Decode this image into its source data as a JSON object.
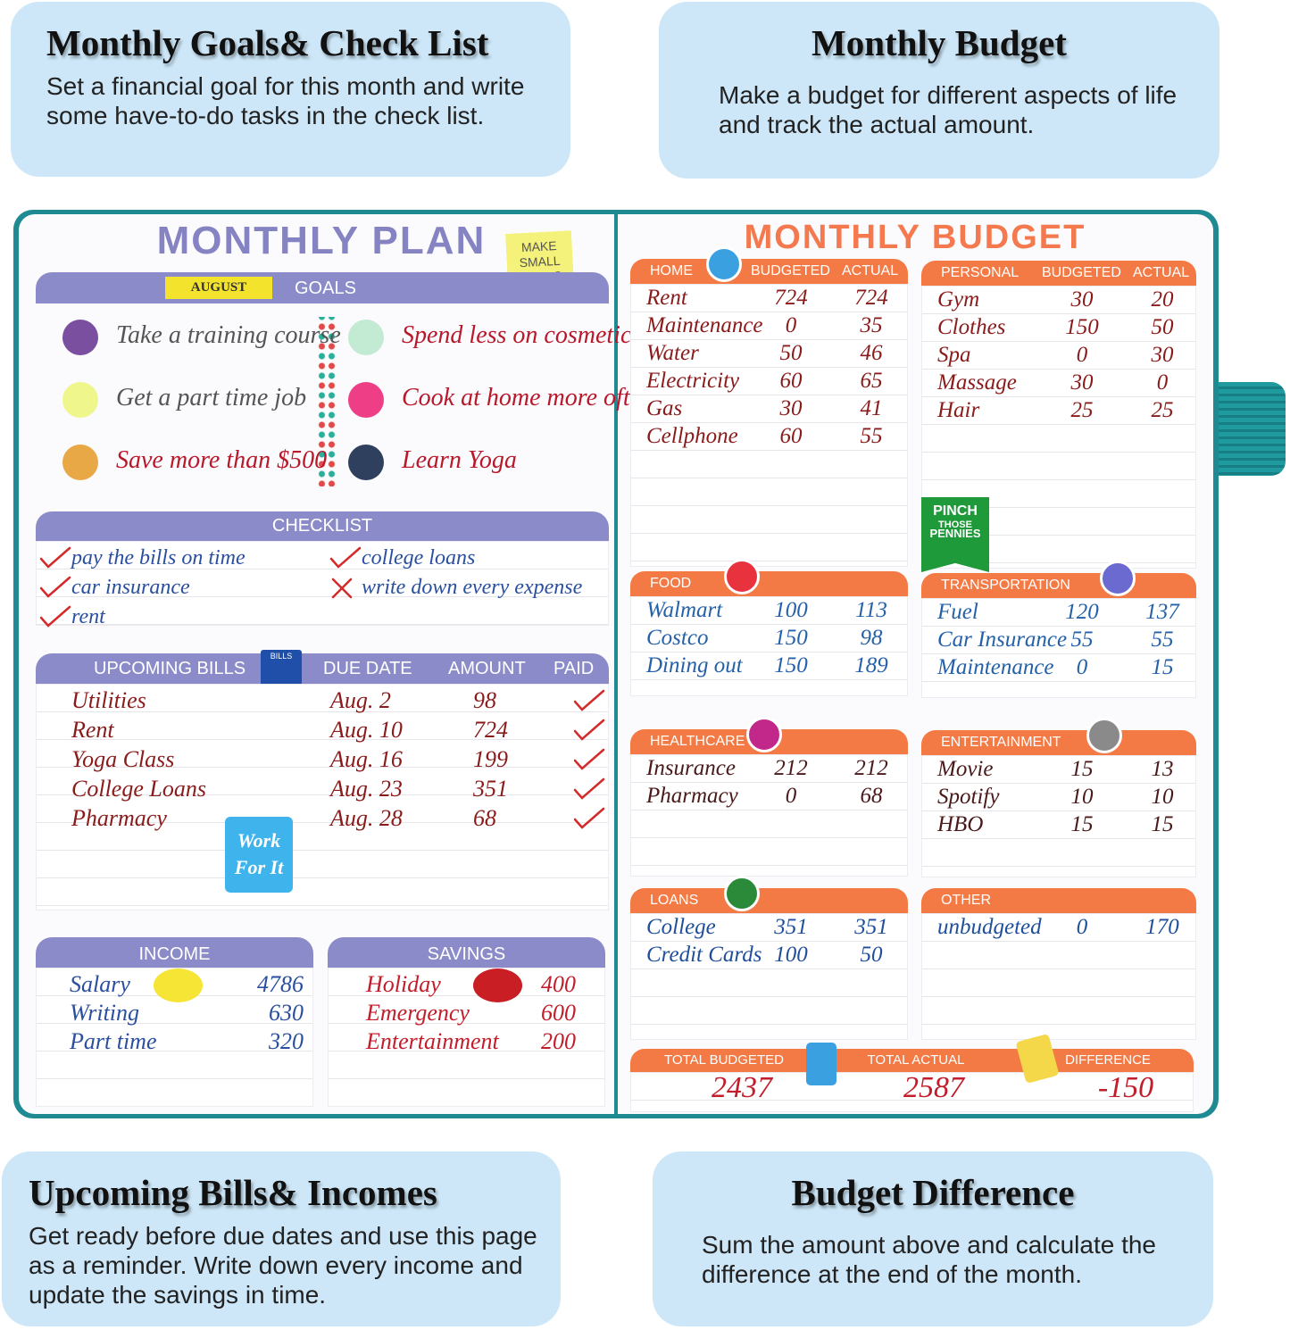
{
  "callouts": [
    {
      "title": "Monthly Goals& Check List",
      "text": "Set a financial goal for this month and write some have-to-do tasks in the check list."
    },
    {
      "title": "Monthly Budget",
      "text": "Make a budget for different aspects of life and track the actual amount."
    },
    {
      "title": "Upcoming Bills& Incomes",
      "text": "Get ready before due dates and use this page as a reminder. Write down every income and update the savings in time."
    },
    {
      "title": "Budget Difference",
      "text": "Sum the amount above and calculate the difference at the end of the month."
    }
  ],
  "plan": {
    "title": "MONTHLY PLAN",
    "sticky": [
      "MAKE",
      "SMALL",
      "GOALS"
    ],
    "month": "AUGUST",
    "goals_header": "GOALS",
    "goals": [
      {
        "text": "Take a training course",
        "color": "#7b4f9f"
      },
      {
        "text": "Get a part time job",
        "color": "#eef68c"
      },
      {
        "text": "Save more than $500",
        "color": "#e9a846"
      },
      {
        "text": "Spend less on cosmetics",
        "color": "#c3ead3"
      },
      {
        "text": "Cook at home more often",
        "color": "#ee3f86"
      },
      {
        "text": "Learn Yoga",
        "color": "#2f3f5e"
      }
    ],
    "checklist_header": "CHECKLIST",
    "checklist": [
      {
        "text": "pay the bills on time",
        "done": true
      },
      {
        "text": "car insurance",
        "done": true
      },
      {
        "text": "rent",
        "done": true
      },
      {
        "text": "college loans",
        "done": true
      },
      {
        "text": "write down every expense",
        "done": false
      }
    ],
    "bills": {
      "header": "UPCOMING BILLS",
      "icon": "BILLS",
      "columns": [
        "DUE DATE",
        "AMOUNT",
        "PAID"
      ],
      "rows": [
        [
          "Utilities",
          "Aug. 2",
          "98"
        ],
        [
          "Rent",
          "Aug. 10",
          "724"
        ],
        [
          "Yoga Class",
          "Aug. 16",
          "199"
        ],
        [
          "College Loans",
          "Aug. 23",
          "351"
        ],
        [
          "Pharmacy",
          "Aug. 28",
          "68"
        ]
      ],
      "paid": [
        true,
        true,
        true,
        true,
        true
      ]
    },
    "sticker": [
      "Work",
      "For It"
    ],
    "income": {
      "header": "INCOME",
      "rows": [
        [
          "Salary",
          "4786"
        ],
        [
          "Writing",
          "630"
        ],
        [
          "Part time",
          "320"
        ]
      ]
    },
    "savings": {
      "header": "SAVINGS",
      "rows": [
        [
          "Holiday",
          "400"
        ],
        [
          "Emergency",
          "600"
        ],
        [
          "Entertainment",
          "200"
        ]
      ]
    }
  },
  "budget": {
    "title": "MONTHLY BUDGET",
    "sections": [
      {
        "label": "HOME",
        "columns": [
          "BUDGETED",
          "ACTUAL"
        ],
        "rows": [
          [
            "Rent",
            "724",
            "724"
          ],
          [
            "Maintenance",
            "0",
            "35"
          ],
          [
            "Water",
            "50",
            "46"
          ],
          [
            "Electricity",
            "60",
            "65"
          ],
          [
            "Gas",
            "30",
            "41"
          ],
          [
            "Cellphone",
            "60",
            "55"
          ]
        ]
      },
      {
        "label": "PERSONAL",
        "columns": [
          "BUDGETED",
          "ACTUAL"
        ],
        "rows": [
          [
            "Gym",
            "30",
            "20"
          ],
          [
            "Clothes",
            "150",
            "50"
          ],
          [
            "Spa",
            "0",
            "30"
          ],
          [
            "Massage",
            "30",
            "0"
          ],
          [
            "Hair",
            "25",
            "25"
          ]
        ]
      },
      {
        "label": "FOOD",
        "rows": [
          [
            "Walmart",
            "100",
            "113"
          ],
          [
            "Costco",
            "150",
            "98"
          ],
          [
            "Dining out",
            "150",
            "189"
          ]
        ]
      },
      {
        "label": "TRANSPORTATION",
        "rows": [
          [
            "Fuel",
            "120",
            "137"
          ],
          [
            "Car Insurance",
            "55",
            "55"
          ],
          [
            "Maintenance",
            "0",
            "15"
          ]
        ]
      },
      {
        "label": "HEALTHCARE",
        "rows": [
          [
            "Insurance",
            "212",
            "212"
          ],
          [
            "Pharmacy",
            "0",
            "68"
          ]
        ]
      },
      {
        "label": "ENTERTAINMENT",
        "rows": [
          [
            "Movie",
            "15",
            "13"
          ],
          [
            "Spotify",
            "10",
            "10"
          ],
          [
            "HBO",
            "15",
            "15"
          ]
        ]
      },
      {
        "label": "LOANS",
        "rows": [
          [
            "College",
            "351",
            "351"
          ],
          [
            "Credit Cards",
            "100",
            "50"
          ]
        ]
      },
      {
        "label": "OTHER",
        "rows": [
          [
            "unbudgeted",
            "0",
            "170"
          ]
        ]
      }
    ],
    "sticker": [
      "PINCH",
      "THOSE",
      "PENNIES"
    ],
    "totals": [
      {
        "label": "TOTAL BUDGETED",
        "value": "2437"
      },
      {
        "label": "TOTAL ACTUAL",
        "value": "2587"
      },
      {
        "label": "DIFFERENCE",
        "value": "-150"
      }
    ]
  }
}
